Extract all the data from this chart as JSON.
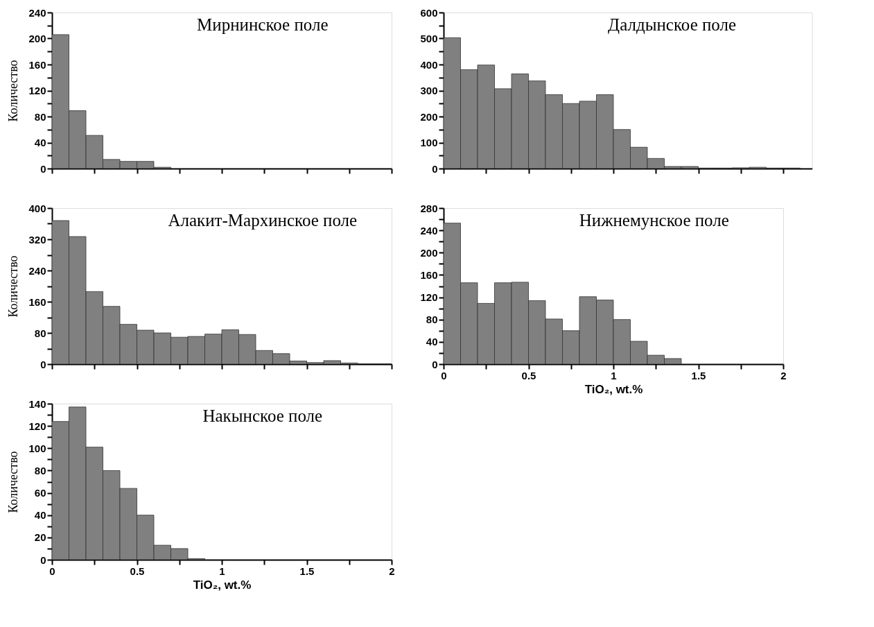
{
  "chart_data": [
    {
      "type": "histogram",
      "title": "Мирнинское поле",
      "ylabel": "Количество",
      "color": "#808080",
      "bins": [
        0,
        0.1,
        0.2,
        0.3,
        0.4,
        0.5,
        0.6,
        0.7
      ],
      "values": [
        206,
        89,
        51,
        14,
        11,
        11,
        2
      ],
      "xlim": [
        0,
        2
      ],
      "xticks": [
        0,
        {
          "value": 0.25,
          "label": null
        },
        0.5,
        {
          "value": 0.75,
          "label": null
        },
        1,
        {
          "value": 1.25,
          "label": null
        },
        1.5,
        {
          "value": 1.75,
          "label": null
        },
        2
      ],
      "ylim": [
        0,
        240
      ],
      "yticks": [
        0,
        {
          "value": 20,
          "label": null
        },
        40,
        {
          "value": 60,
          "label": null
        },
        80,
        {
          "value": 100,
          "label": null
        },
        120,
        {
          "value": 140,
          "label": null
        },
        160,
        {
          "value": 180,
          "label": null
        },
        200,
        {
          "value": 220,
          "label": null
        },
        240
      ],
      "tick_labels": "y"
    },
    {
      "type": "histogram",
      "title": "Далдынское поле",
      "color": "#808080",
      "bins": [
        0,
        0.1,
        0.2,
        0.3,
        0.4,
        0.5,
        0.6,
        0.7,
        0.8,
        0.9,
        1,
        1.1,
        1.2,
        1.3,
        1.4,
        1.5,
        1.6,
        1.7,
        1.8,
        1.9,
        2,
        2.1
      ],
      "values": [
        503,
        380,
        398,
        307,
        364,
        337,
        284,
        250,
        259,
        284,
        150,
        82,
        39,
        8,
        8,
        2,
        2,
        3,
        5,
        2,
        2
      ],
      "xlim": [
        0,
        2.17
      ],
      "xticks": [
        0,
        {
          "value": 0.25,
          "label": null
        },
        0.5,
        {
          "value": 0.75,
          "label": null
        },
        1,
        {
          "value": 1.25,
          "label": null
        },
        1.5,
        {
          "value": 1.75,
          "label": null
        },
        2
      ],
      "ylim": [
        0,
        600
      ],
      "yticks": [
        0,
        {
          "value": 50,
          "label": null
        },
        100,
        {
          "value": 150,
          "label": null
        },
        200,
        {
          "value": 250,
          "label": null
        },
        300,
        {
          "value": 350,
          "label": null
        },
        400,
        {
          "value": 450,
          "label": null
        },
        500,
        {
          "value": 550,
          "label": null
        },
        600
      ],
      "tick_labels": "y"
    },
    {
      "type": "histogram",
      "title": "Алакит-Мархинское поле",
      "ylabel": "Количество",
      "color": "#808080",
      "bins": [
        0,
        0.1,
        0.2,
        0.3,
        0.4,
        0.5,
        0.6,
        0.7,
        0.8,
        0.9,
        1,
        1.1,
        1.2,
        1.3,
        1.4,
        1.5,
        1.6,
        1.7,
        1.8,
        1.9,
        2
      ],
      "values": [
        368,
        327,
        186,
        148,
        102,
        87,
        80,
        69,
        71,
        77,
        88,
        76,
        35,
        27,
        8,
        4,
        9,
        3,
        1,
        1
      ],
      "xlim": [
        0,
        2
      ],
      "xticks": [
        0,
        {
          "value": 0.25,
          "label": null
        },
        0.5,
        {
          "value": 0.75,
          "label": null
        },
        1,
        {
          "value": 1.25,
          "label": null
        },
        1.5,
        {
          "value": 1.75,
          "label": null
        },
        2
      ],
      "ylim": [
        0,
        400
      ],
      "yticks": [
        0,
        {
          "value": 40,
          "label": null
        },
        80,
        {
          "value": 120,
          "label": null
        },
        160,
        {
          "value": 200,
          "label": null
        },
        240,
        {
          "value": 280,
          "label": null
        },
        320,
        {
          "value": 360,
          "label": null
        },
        400
      ],
      "tick_labels": "y"
    },
    {
      "type": "histogram",
      "title": "Нижнемунское поле",
      "xlabel": "TiO₂, wt.%",
      "color": "#808080",
      "bins": [
        0,
        0.1,
        0.2,
        0.3,
        0.4,
        0.5,
        0.6,
        0.7,
        0.8,
        0.9,
        1,
        1.1,
        1.2,
        1.3,
        1.4
      ],
      "values": [
        253,
        146,
        109,
        146,
        147,
        114,
        81,
        60,
        121,
        115,
        80,
        41,
        16,
        10
      ],
      "xlim": [
        0,
        2
      ],
      "xticks": [
        0,
        {
          "value": 0.25,
          "label": null
        },
        0.5,
        {
          "value": 0.75,
          "label": null
        },
        1,
        {
          "value": 1.25,
          "label": null
        },
        1.5,
        {
          "value": 1.75,
          "label": null
        },
        2
      ],
      "ylim": [
        0,
        280
      ],
      "yticks": [
        0,
        {
          "value": 20,
          "label": null
        },
        40,
        {
          "value": 60,
          "label": null
        },
        80,
        {
          "value": 100,
          "label": null
        },
        120,
        {
          "value": 140,
          "label": null
        },
        160,
        {
          "value": 180,
          "label": null
        },
        200,
        {
          "value": 220,
          "label": null
        },
        240,
        {
          "value": 260,
          "label": null
        },
        280
      ]
    },
    {
      "type": "histogram",
      "title": "Накынское поле",
      "ylabel": "Количество",
      "xlabel": "TiO₂, wt.%",
      "color": "#808080",
      "bins": [
        0,
        0.1,
        0.2,
        0.3,
        0.4,
        0.5,
        0.6,
        0.7,
        0.8,
        0.9
      ],
      "values": [
        124,
        137,
        101,
        80,
        64,
        40,
        13,
        10,
        1
      ],
      "xlim": [
        0,
        2
      ],
      "xticks": [
        0,
        {
          "value": 0.25,
          "label": null
        },
        0.5,
        {
          "value": 0.75,
          "label": null
        },
        1,
        {
          "value": 1.25,
          "label": null
        },
        1.5,
        {
          "value": 1.75,
          "label": null
        },
        2
      ],
      "ylim": [
        0,
        140
      ],
      "yticks": [
        0,
        {
          "value": 10,
          "label": null
        },
        20,
        {
          "value": 30,
          "label": null
        },
        40,
        {
          "value": 50,
          "label": null
        },
        60,
        {
          "value": 70,
          "label": null
        },
        80,
        {
          "value": 90,
          "label": null
        },
        100,
        {
          "value": 110,
          "label": null
        },
        120,
        {
          "value": 130,
          "label": null
        },
        140
      ]
    }
  ]
}
